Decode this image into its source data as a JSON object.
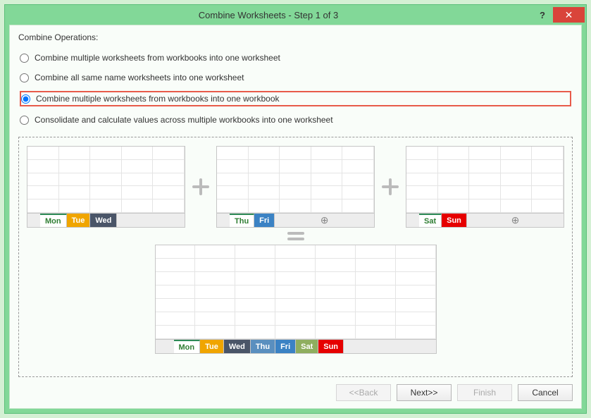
{
  "title": "Combine Worksheets - Step 1 of 3",
  "ops_header": "Combine Operations:",
  "options": [
    "Combine multiple worksheets from workbooks into one worksheet",
    "Combine all same name worksheets into one worksheet",
    "Combine multiple worksheets from workbooks into one workbook",
    "Consolidate and calculate values across multiple workbooks into one worksheet"
  ],
  "selected_option": 2,
  "sheets": {
    "a": [
      {
        "label": "Mon",
        "bg": "#ffffff",
        "fg": "#2e7d32"
      },
      {
        "label": "Tue",
        "bg": "#f0a500",
        "fg": "#ffffff"
      },
      {
        "label": "Wed",
        "bg": "#4a5568",
        "fg": "#ffffff"
      }
    ],
    "b": [
      {
        "label": "Thu",
        "bg": "#ffffff",
        "fg": "#2e7d32"
      },
      {
        "label": "Fri",
        "bg": "#3b82c4",
        "fg": "#ffffff"
      }
    ],
    "c": [
      {
        "label": "Sat",
        "bg": "#ffffff",
        "fg": "#2e7d32"
      },
      {
        "label": "Sun",
        "bg": "#e60000",
        "fg": "#ffffff"
      }
    ],
    "result": [
      {
        "label": "Mon",
        "bg": "#ffffff",
        "fg": "#2e7d32"
      },
      {
        "label": "Tue",
        "bg": "#f0a500",
        "fg": "#ffffff"
      },
      {
        "label": "Wed",
        "bg": "#4a5568",
        "fg": "#ffffff"
      },
      {
        "label": "Thu",
        "bg": "#5a8fbf",
        "fg": "#ffffff"
      },
      {
        "label": "Fri",
        "bg": "#3b82c4",
        "fg": "#ffffff"
      },
      {
        "label": "Sat",
        "bg": "#8fae5f",
        "fg": "#ffffff"
      },
      {
        "label": "Sun",
        "bg": "#e60000",
        "fg": "#ffffff"
      }
    ]
  },
  "buttons": {
    "back": "<<Back",
    "next": "Next>>",
    "finish": "Finish",
    "cancel": "Cancel"
  }
}
